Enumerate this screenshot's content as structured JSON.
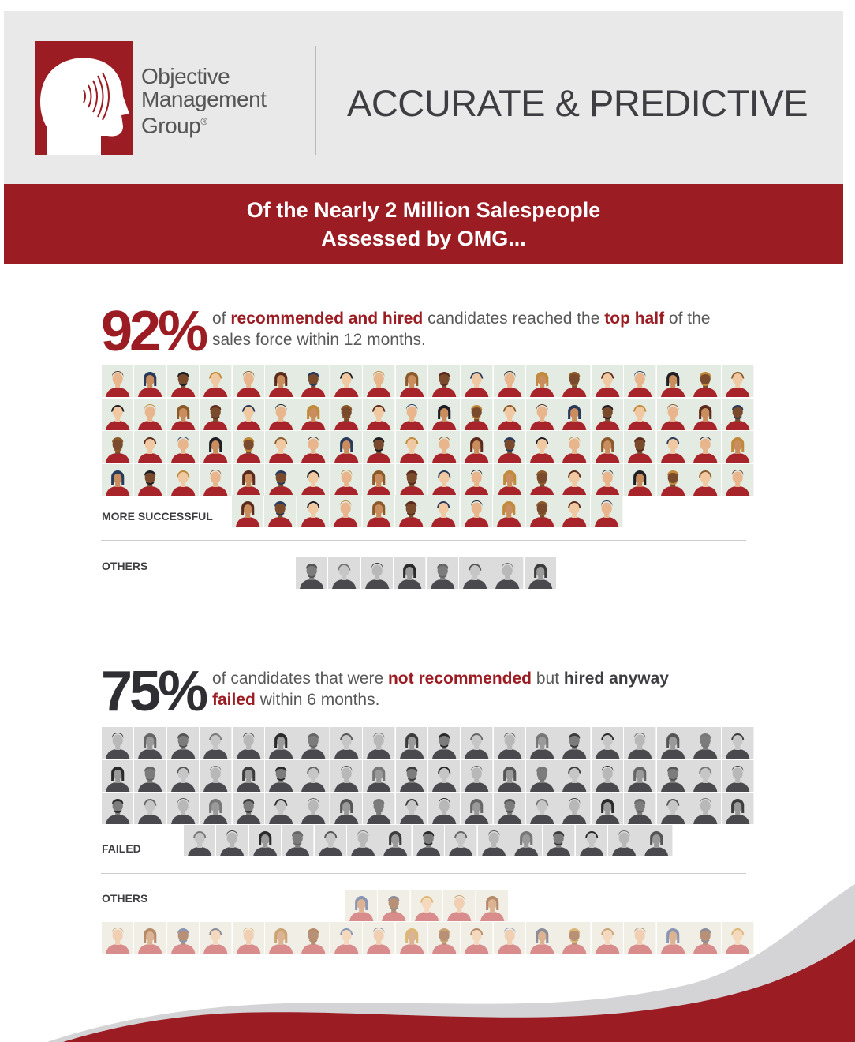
{
  "brand": {
    "name_lines": [
      "Objective",
      "Management",
      "Group"
    ],
    "registered_mark": "®",
    "logo_icon": "head-with-sound-waves-icon",
    "color": "#9b1c22"
  },
  "header": {
    "headline": "ACCURATE & PREDICTIVE"
  },
  "banner": {
    "line1": "Of the Nearly 2 Million Salespeople",
    "line2": "Assessed by OMG..."
  },
  "stat1": {
    "percent": "92%",
    "color": "#9b1c22",
    "t1": "of ",
    "t2": "recommended and hired",
    "t3": " candidates reached the ",
    "t4": "top half",
    "t5": " of the sales force within 12 months.",
    "group_success_label": "MORE SUCCESSFUL",
    "group_other_label": "OTHERS",
    "success_count": 92,
    "other_count": 8
  },
  "stat2": {
    "percent": "75%",
    "color": "#2f2f33",
    "t1": "of candidates that were ",
    "t2": "not recommended",
    "t3": " but ",
    "t4": "hired anyway",
    "t5": "failed",
    "t6": " within 6 months.",
    "group_failed_label": "FAILED",
    "group_other_label": "OTHERS",
    "failed_count": 75,
    "other_count": 25
  }
}
